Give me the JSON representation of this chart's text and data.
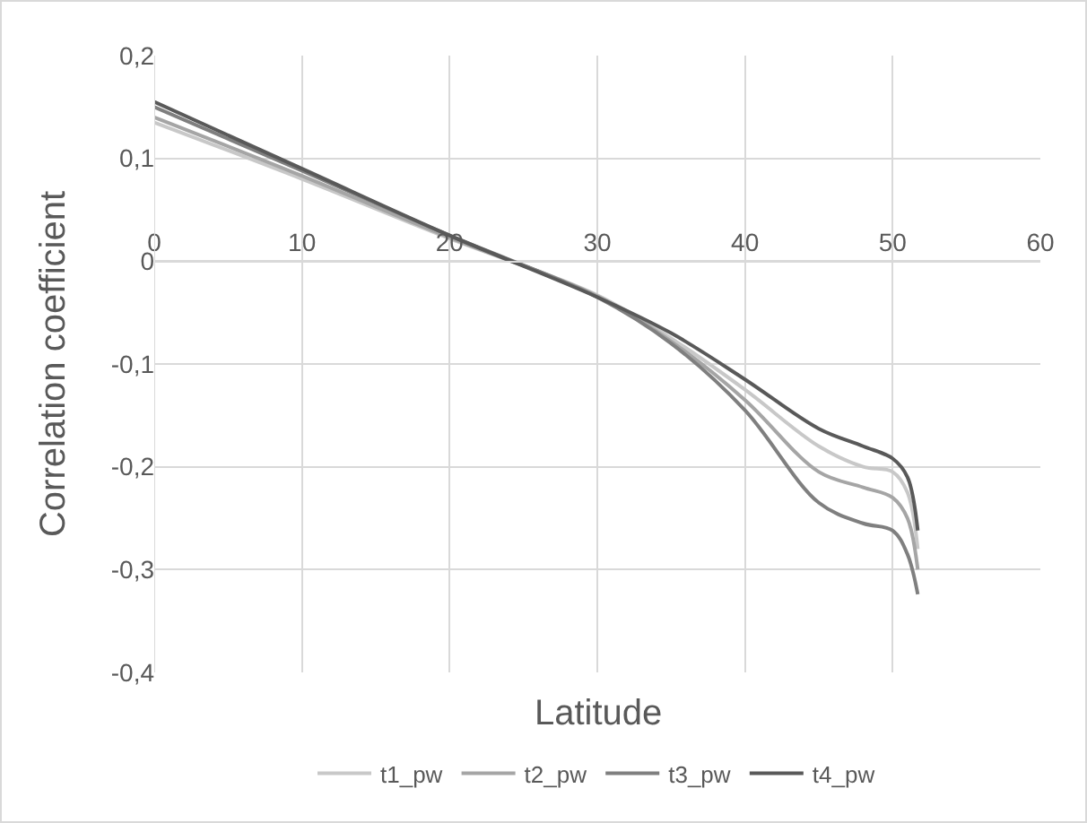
{
  "chart_data": {
    "type": "line",
    "xlabel": "Latitude",
    "ylabel": "Correlation coefficient",
    "xlim": [
      0,
      60
    ],
    "xticks": [
      0,
      10,
      20,
      30,
      40,
      50,
      60
    ],
    "ylim": [
      -0.4,
      0.2
    ],
    "yticks": [
      {
        "value": -0.4,
        "label": "-0,4"
      },
      {
        "value": -0.3,
        "label": "-0,3"
      },
      {
        "value": -0.2,
        "label": "-0,2"
      },
      {
        "value": -0.1,
        "label": "-0,1"
      },
      0,
      {
        "value": 0.1,
        "label": "0,1"
      },
      {
        "value": 0.2,
        "label": "0,2"
      }
    ],
    "grid": true,
    "legend": "bottom",
    "marker": "none",
    "line_style": "solid",
    "x": [
      0,
      10,
      20,
      30,
      35,
      40,
      45,
      48,
      50,
      51,
      51.7
    ],
    "series": [
      {
        "name": "t1_pw",
        "color": "#c8c8c8",
        "values": [
          0.135,
          0.08,
          0.022,
          -0.033,
          -0.075,
          -0.125,
          -0.18,
          -0.2,
          -0.205,
          -0.225,
          -0.28
        ]
      },
      {
        "name": "t2_pw",
        "color": "#a5a5a5",
        "values": [
          0.14,
          0.083,
          0.023,
          -0.034,
          -0.078,
          -0.135,
          -0.205,
          -0.22,
          -0.23,
          -0.25,
          -0.3
        ]
      },
      {
        "name": "t3_pw",
        "color": "#7f7f7f",
        "values": [
          0.15,
          0.088,
          0.025,
          -0.035,
          -0.08,
          -0.145,
          -0.235,
          -0.255,
          -0.262,
          -0.285,
          -0.324
        ]
      },
      {
        "name": "t4_pw",
        "color": "#595959",
        "values": [
          0.155,
          0.09,
          0.025,
          -0.035,
          -0.07,
          -0.115,
          -0.163,
          -0.18,
          -0.192,
          -0.21,
          -0.262
        ]
      }
    ]
  }
}
